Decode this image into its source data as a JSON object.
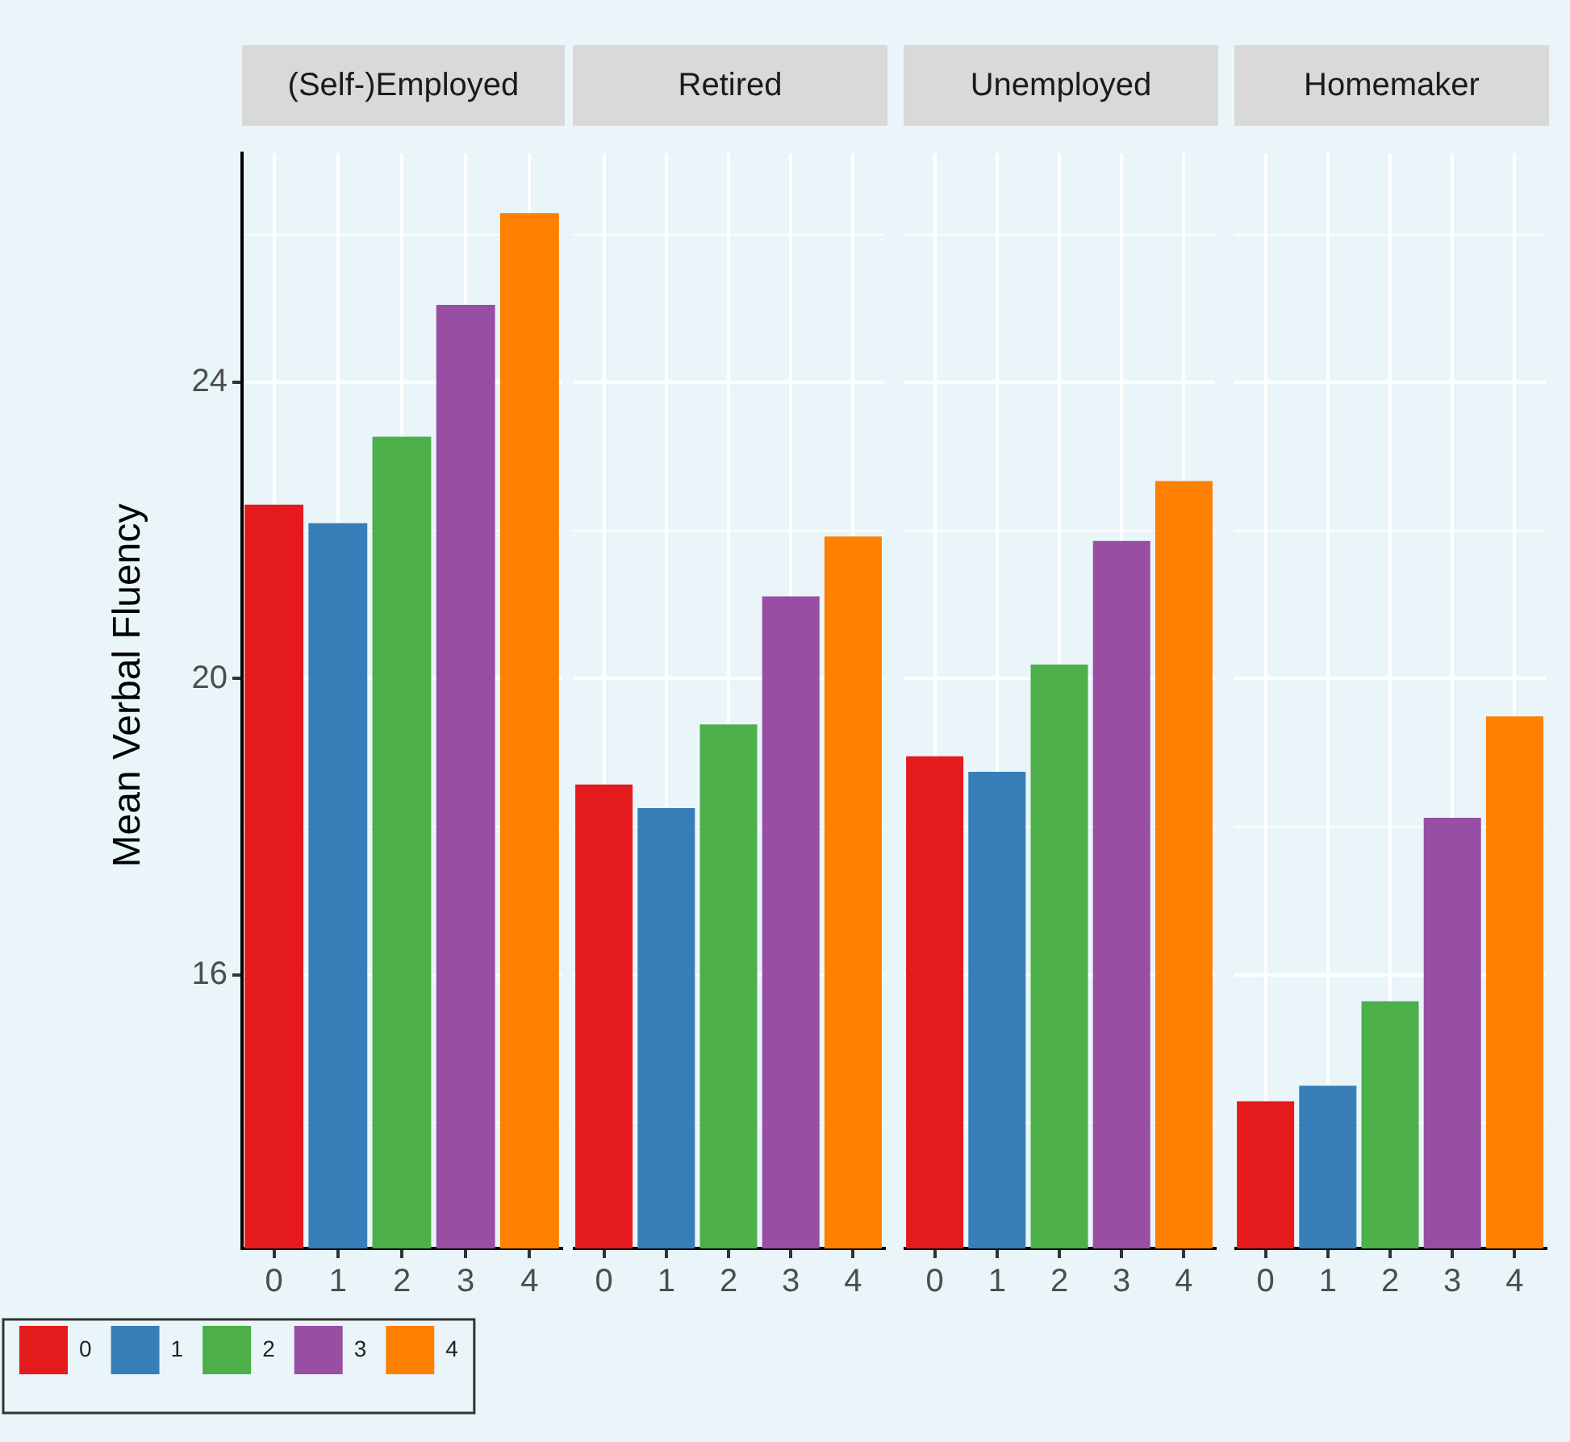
{
  "chart_data": [
    {
      "type": "bar",
      "title": "(Self-)Employed",
      "ylabel": "Mean Verbal Fluency",
      "categories": [
        "0",
        "1",
        "2",
        "3",
        "4"
      ],
      "series": [
        {
          "name": "0",
          "color": "#e41a1c",
          "x": [
            "0"
          ],
          "values": [
            22.35
          ]
        },
        {
          "name": "1",
          "color": "#377eb8",
          "x": [
            "1"
          ],
          "values": [
            22.1
          ]
        },
        {
          "name": "2",
          "color": "#4daf4a",
          "x": [
            "2"
          ],
          "values": [
            23.27
          ]
        },
        {
          "name": "3",
          "color": "#984ea3",
          "x": [
            "3"
          ],
          "values": [
            25.05
          ]
        },
        {
          "name": "4",
          "color": "#ff7f00",
          "x": [
            "4"
          ],
          "values": [
            26.29
          ]
        }
      ],
      "ylim": [
        12.3,
        27.1
      ],
      "yticks": [
        {
          "value": 14,
          "label": null
        },
        16,
        {
          "value": 18,
          "label": null
        },
        20,
        {
          "value": 22,
          "label": null
        },
        24,
        {
          "value": 26,
          "label": null
        }
      ],
      "grid": true,
      "legend": "bottom left"
    },
    {
      "type": "bar",
      "title": "Retired",
      "categories": [
        "0",
        "1",
        "2",
        "3",
        "4"
      ],
      "series": [
        {
          "color": "#e41a1c",
          "x": [
            "0"
          ],
          "values": [
            18.57
          ]
        },
        {
          "color": "#377eb8",
          "x": [
            "1"
          ],
          "values": [
            18.25
          ]
        },
        {
          "color": "#4daf4a",
          "x": [
            "2"
          ],
          "values": [
            19.38
          ]
        },
        {
          "color": "#984ea3",
          "x": [
            "3"
          ],
          "values": [
            21.11
          ]
        },
        {
          "color": "#ff7f00",
          "x": [
            "4"
          ],
          "values": [
            21.92
          ]
        }
      ],
      "ylim": [
        12.3,
        27.1
      ],
      "yticks": [
        {
          "value": 14,
          "label": null
        },
        16,
        {
          "value": 18,
          "label": null
        },
        20,
        {
          "value": 22,
          "label": null
        },
        24,
        {
          "value": 26,
          "label": null
        }
      ],
      "grid": true,
      "tick_labels": "x"
    },
    {
      "type": "bar",
      "title": "Unemployed",
      "categories": [
        "0",
        "1",
        "2",
        "3",
        "4"
      ],
      "series": [
        {
          "color": "#e41a1c",
          "x": [
            "0"
          ],
          "values": [
            18.95
          ]
        },
        {
          "color": "#377eb8",
          "x": [
            "1"
          ],
          "values": [
            18.74
          ]
        },
        {
          "color": "#4daf4a",
          "x": [
            "2"
          ],
          "values": [
            20.19
          ]
        },
        {
          "color": "#984ea3",
          "x": [
            "3"
          ],
          "values": [
            21.86
          ]
        },
        {
          "color": "#ff7f00",
          "x": [
            "4"
          ],
          "values": [
            22.67
          ]
        }
      ],
      "ylim": [
        12.3,
        27.1
      ],
      "yticks": [
        {
          "value": 14,
          "label": null
        },
        16,
        {
          "value": 18,
          "label": null
        },
        20,
        {
          "value": 22,
          "label": null
        },
        24,
        {
          "value": 26,
          "label": null
        }
      ],
      "grid": true,
      "tick_labels": "x"
    },
    {
      "type": "bar",
      "title": "Homemaker",
      "categories": [
        "0",
        "1",
        "2",
        "3",
        "4"
      ],
      "series": [
        {
          "color": "#e41a1c",
          "x": [
            "0"
          ],
          "values": [
            14.29
          ]
        },
        {
          "color": "#377eb8",
          "x": [
            "1"
          ],
          "values": [
            14.5
          ]
        },
        {
          "color": "#4daf4a",
          "x": [
            "2"
          ],
          "values": [
            15.64
          ]
        },
        {
          "color": "#984ea3",
          "x": [
            "3"
          ],
          "values": [
            18.12
          ]
        },
        {
          "color": "#ff7f00",
          "x": [
            "4"
          ],
          "values": [
            19.49
          ]
        }
      ],
      "ylim": [
        12.3,
        27.1
      ],
      "yticks": [
        {
          "value": 14,
          "label": null
        },
        16,
        {
          "value": 18,
          "label": null
        },
        20,
        {
          "value": 22,
          "label": null
        },
        24,
        {
          "value": 26,
          "label": null
        }
      ],
      "grid": true,
      "tick_labels": "x"
    }
  ]
}
